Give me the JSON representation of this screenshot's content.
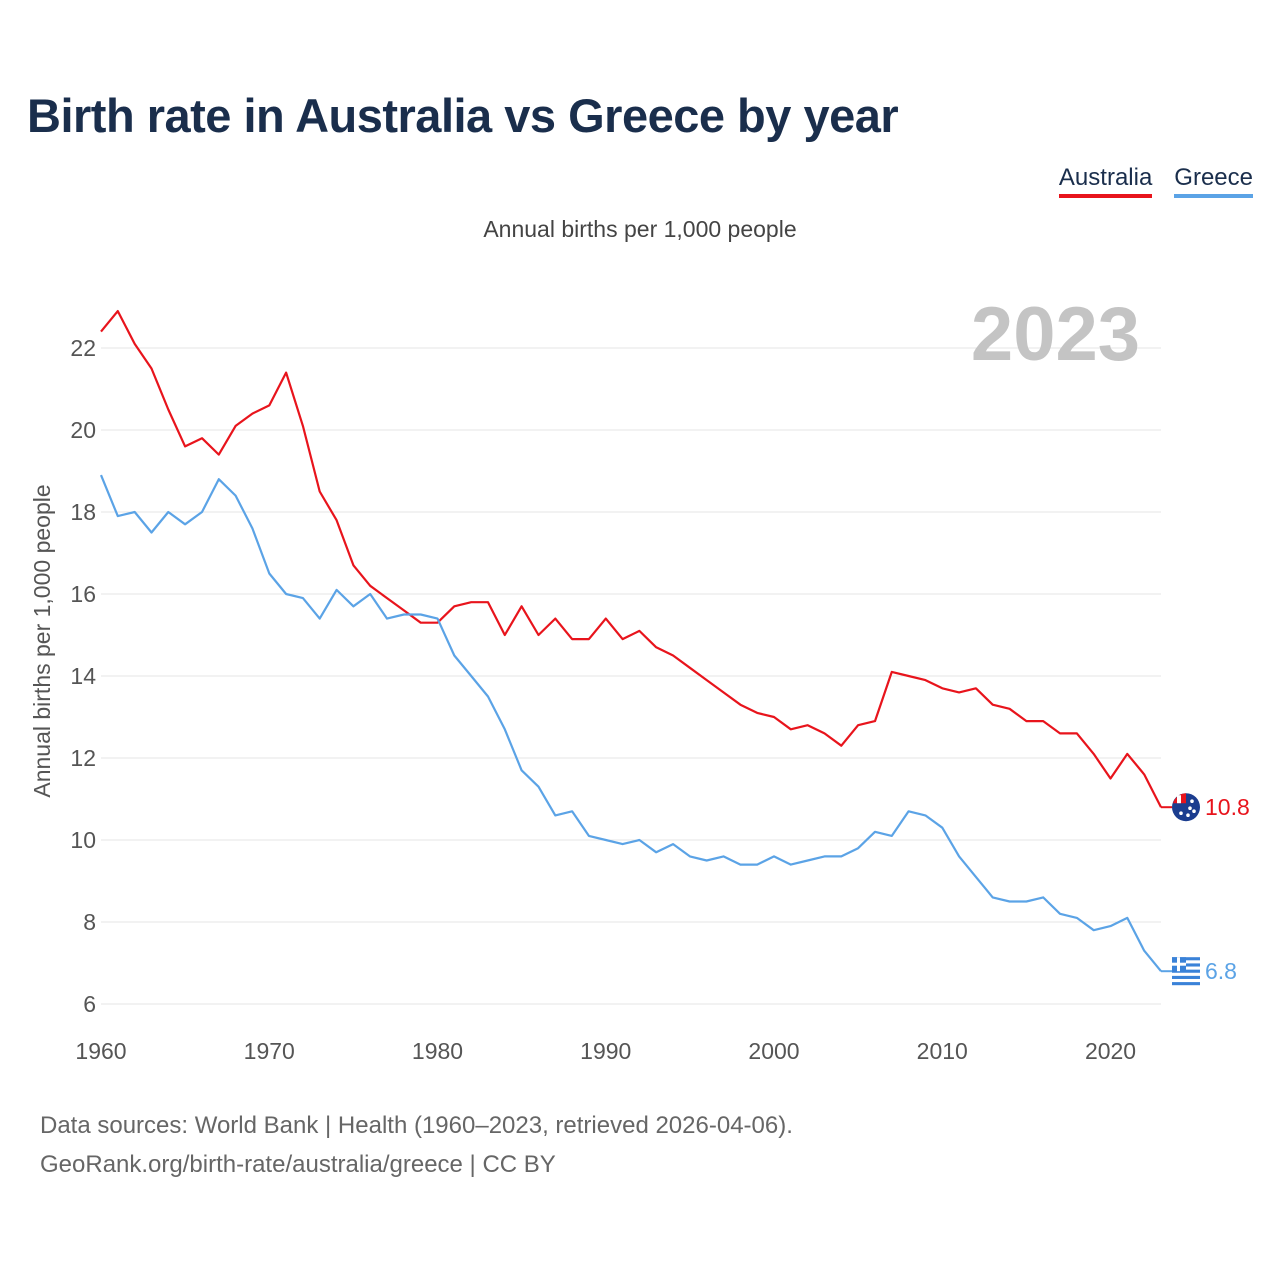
{
  "title": "Birth rate in Australia vs Greece by year",
  "subtitle": "Annual births per 1,000 people",
  "footer": {
    "line1": "Data sources: World Bank | Health (1960–2023, retrieved 2026-04-06).",
    "line2": "GeoRank.org/birth-rate/australia/greece | CC BY"
  },
  "chart_data": {
    "type": "line",
    "title": "Birth rate in Australia vs Greece by year",
    "year_label": "2023",
    "xlabel": "",
    "ylabel": "Annual births per 1,000 people",
    "xlim": [
      1960,
      2023
    ],
    "ylim": [
      6,
      23
    ],
    "x_ticks": [
      1960,
      1970,
      1980,
      1990,
      2000,
      2010,
      2020
    ],
    "y_ticks": [
      6,
      8,
      10,
      12,
      14,
      16,
      18,
      20,
      22
    ],
    "legend_position": "top-right",
    "x": [
      1960,
      1961,
      1962,
      1963,
      1964,
      1965,
      1966,
      1967,
      1968,
      1969,
      1970,
      1971,
      1972,
      1973,
      1974,
      1975,
      1976,
      1977,
      1978,
      1979,
      1980,
      1981,
      1982,
      1983,
      1984,
      1985,
      1986,
      1987,
      1988,
      1989,
      1990,
      1991,
      1992,
      1993,
      1994,
      1995,
      1996,
      1997,
      1998,
      1999,
      2000,
      2001,
      2002,
      2003,
      2004,
      2005,
      2006,
      2007,
      2008,
      2009,
      2010,
      2011,
      2012,
      2013,
      2014,
      2015,
      2016,
      2017,
      2018,
      2019,
      2020,
      2021,
      2022,
      2023
    ],
    "series": [
      {
        "name": "Australia",
        "color": "#e8141c",
        "end_label": "10.8",
        "values": [
          22.4,
          22.9,
          22.1,
          21.5,
          20.5,
          19.6,
          19.8,
          19.4,
          20.1,
          20.4,
          20.6,
          21.4,
          20.1,
          18.5,
          17.8,
          16.7,
          16.2,
          15.9,
          15.6,
          15.3,
          15.3,
          15.7,
          15.8,
          15.8,
          15.0,
          15.7,
          15.0,
          15.4,
          14.9,
          14.9,
          15.4,
          14.9,
          15.1,
          14.7,
          14.5,
          14.2,
          13.9,
          13.6,
          13.3,
          13.1,
          13.0,
          12.7,
          12.8,
          12.6,
          12.3,
          12.8,
          12.9,
          14.1,
          14.0,
          13.9,
          13.7,
          13.6,
          13.7,
          13.3,
          13.2,
          12.9,
          12.9,
          12.6,
          12.6,
          12.1,
          11.5,
          12.1,
          11.6,
          10.8
        ]
      },
      {
        "name": "Greece",
        "color": "#5ba3e6",
        "end_label": "6.8",
        "values": [
          18.9,
          17.9,
          18.0,
          17.5,
          18.0,
          17.7,
          18.0,
          18.8,
          18.4,
          17.6,
          16.5,
          16.0,
          15.9,
          15.4,
          16.1,
          15.7,
          16.0,
          15.4,
          15.5,
          15.5,
          15.4,
          14.5,
          14.0,
          13.5,
          12.7,
          11.7,
          11.3,
          10.6,
          10.7,
          10.1,
          10.0,
          9.9,
          10.0,
          9.7,
          9.9,
          9.6,
          9.5,
          9.6,
          9.4,
          9.4,
          9.6,
          9.4,
          9.5,
          9.6,
          9.6,
          9.8,
          10.2,
          10.1,
          10.7,
          10.6,
          10.3,
          9.6,
          9.1,
          8.6,
          8.5,
          8.5,
          8.6,
          8.2,
          8.1,
          7.8,
          7.9,
          8.1,
          7.3,
          6.8
        ]
      }
    ]
  }
}
